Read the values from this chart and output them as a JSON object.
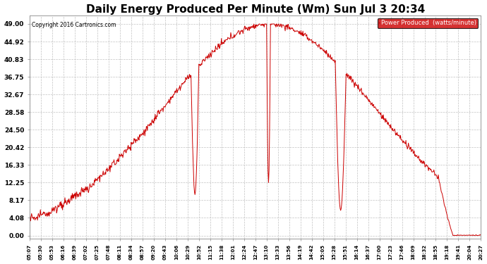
{
  "title": "Daily Energy Produced Per Minute (Wm) Sun Jul 3 20:34",
  "copyright": "Copyright 2016 Cartronics.com",
  "legend_label": "Power Produced  (watts/minute)",
  "legend_bg": "#cc0000",
  "legend_text_color": "#ffffff",
  "line_color": "#cc0000",
  "bg_color": "#ffffff",
  "plot_bg_color": "#ffffff",
  "grid_color": "#bbbbbb",
  "title_fontsize": 11,
  "yticks": [
    0.0,
    4.08,
    8.17,
    12.25,
    16.33,
    20.42,
    24.5,
    28.58,
    32.67,
    36.75,
    40.83,
    44.92,
    49.0
  ],
  "ylim": [
    -0.8,
    51.0
  ],
  "xtick_labels": [
    "05:07",
    "05:30",
    "05:53",
    "06:16",
    "06:39",
    "07:02",
    "07:25",
    "07:48",
    "08:11",
    "08:34",
    "08:57",
    "09:20",
    "09:43",
    "10:06",
    "10:29",
    "10:52",
    "11:15",
    "11:38",
    "12:01",
    "12:24",
    "12:47",
    "13:10",
    "13:33",
    "13:56",
    "14:19",
    "14:42",
    "15:05",
    "15:28",
    "15:51",
    "16:14",
    "16:37",
    "17:00",
    "17:23",
    "17:46",
    "18:09",
    "18:32",
    "18:55",
    "19:18",
    "19:41",
    "20:04",
    "20:27"
  ]
}
